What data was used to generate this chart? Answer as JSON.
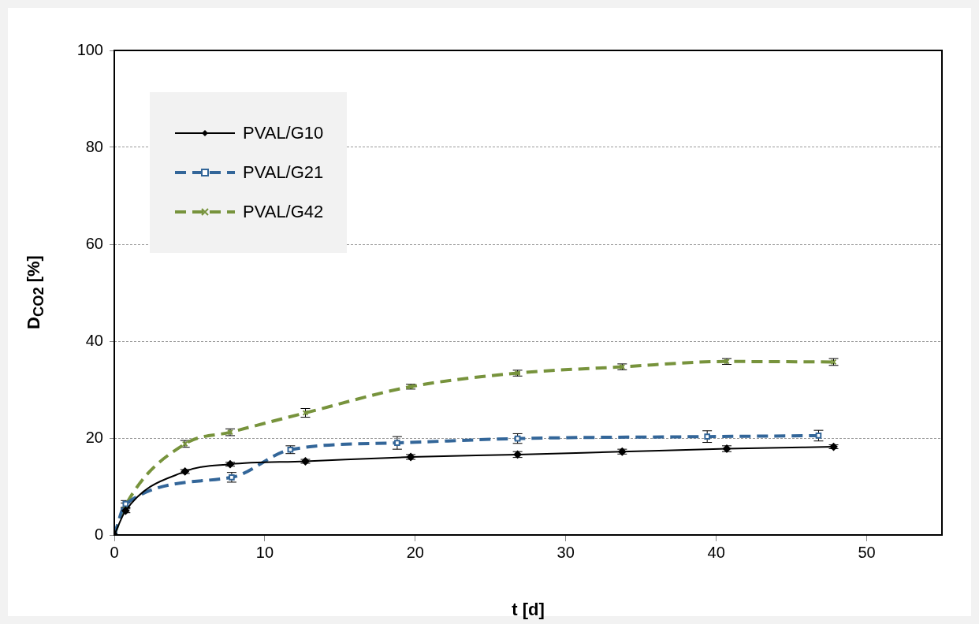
{
  "chart_data": {
    "type": "line",
    "xlabel": "t [d]",
    "ylabel": "D$_{CO2}$ [%]",
    "xlim": [
      0,
      55
    ],
    "xticks": [
      0,
      10,
      20,
      30,
      40,
      50
    ],
    "ylim": [
      0,
      100
    ],
    "yticks": [
      0,
      20,
      40,
      60,
      80,
      100
    ],
    "grid": "y",
    "legend": "top left",
    "series": [
      {
        "name": "PVAL/G10",
        "color": "#000000",
        "marker": "diamond",
        "line_style": "solid",
        "x": [
          0,
          0.75,
          4.7,
          7.7,
          12.7,
          19.7,
          26.8,
          33.75,
          40.7,
          47.8
        ],
        "values": [
          0,
          5.0,
          13.1,
          14.6,
          15.2,
          16.1,
          16.6,
          17.2,
          17.8,
          18.2
        ],
        "errors": [
          null,
          0.4,
          0.4,
          0.4,
          0.4,
          0.5,
          0.6,
          0.5,
          0.6,
          0.4
        ]
      },
      {
        "name": "PVAL/G21",
        "color": "#336699",
        "marker": "square",
        "line_style": "dashed",
        "x": [
          0,
          0.75,
          7.8,
          11.7,
          18.8,
          26.8,
          39.4,
          46.8
        ],
        "values": [
          0,
          6.4,
          11.9,
          17.6,
          19.0,
          19.9,
          20.3,
          20.5
        ],
        "errors": [
          null,
          0.7,
          1.0,
          0.8,
          1.3,
          1.0,
          1.2,
          1.1
        ]
      },
      {
        "name": "PVAL/G42",
        "color": "#77933c",
        "marker": "cross",
        "line_style": "dashed",
        "x": [
          0,
          0.75,
          4.7,
          7.7,
          12.7,
          19.7,
          26.8,
          33.75,
          40.7,
          47.8
        ],
        "values": [
          0,
          6.1,
          18.8,
          21.2,
          25.2,
          30.6,
          33.4,
          34.7,
          35.8,
          35.7
        ],
        "errors": [
          null,
          0.5,
          0.7,
          0.7,
          0.9,
          0.5,
          0.6,
          0.6,
          0.6,
          0.7
        ]
      }
    ]
  }
}
